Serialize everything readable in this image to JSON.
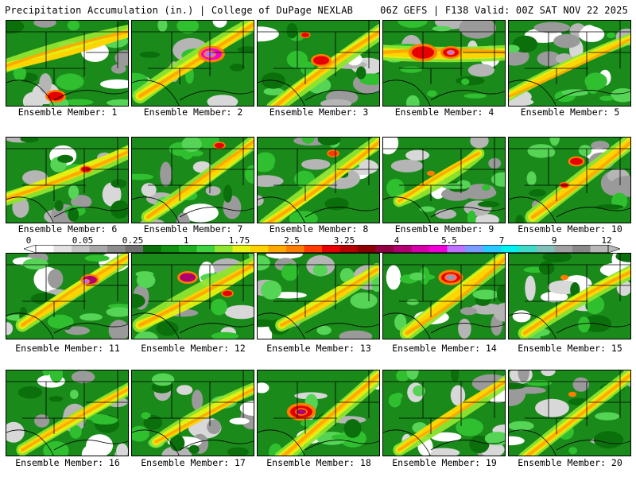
{
  "header": {
    "left": "Precipitation Accumulation (in.) | College of DuPage NEXLAB",
    "right": "06Z GEFS | F138 Valid: 00Z SAT NOV 22 2025"
  },
  "colorbar": {
    "tick_labels": [
      "0",
      "0.05",
      "0.25",
      "1",
      "1.75",
      "2.5",
      "3.25",
      "4",
      "5.5",
      "7",
      "9",
      "12"
    ],
    "colors": [
      "#ffffff",
      "#e2e2e2",
      "#c4c4c4",
      "#a8a8a8",
      "#8c8c8c",
      "#707070",
      "#0b6f0b",
      "#129212",
      "#1fae1f",
      "#3fd23f",
      "#8fe52f",
      "#e6f012",
      "#ffd200",
      "#ffa800",
      "#ff7e00",
      "#ff3c00",
      "#e60000",
      "#b40000",
      "#8a0000",
      "#900040",
      "#b00070",
      "#d400a8",
      "#f000d8",
      "#c070ff",
      "#7a9cff",
      "#29c8ff",
      "#00f0f0",
      "#40d8c8",
      "#80c0b8",
      "#a0a0a0",
      "#888888",
      "#b8b8b8"
    ]
  },
  "panels": [
    {
      "label": "Ensemble Member: 1"
    },
    {
      "label": "Ensemble Member: 2"
    },
    {
      "label": "Ensemble Member: 3"
    },
    {
      "label": "Ensemble Member: 4"
    },
    {
      "label": "Ensemble Member: 5"
    },
    {
      "label": "Ensemble Member: 6"
    },
    {
      "label": "Ensemble Member: 7"
    },
    {
      "label": "Ensemble Member: 8"
    },
    {
      "label": "Ensemble Member: 9"
    },
    {
      "label": "Ensemble Member: 10"
    },
    {
      "label": "Ensemble Member: 11"
    },
    {
      "label": "Ensemble Member: 12"
    },
    {
      "label": "Ensemble Member: 13"
    },
    {
      "label": "Ensemble Member: 14"
    },
    {
      "label": "Ensemble Member: 15"
    },
    {
      "label": "Ensemble Member: 16"
    },
    {
      "label": "Ensemble Member: 17"
    },
    {
      "label": "Ensemble Member: 18"
    },
    {
      "label": "Ensemble Member: 19"
    },
    {
      "label": "Ensemble Member: 20"
    }
  ]
}
